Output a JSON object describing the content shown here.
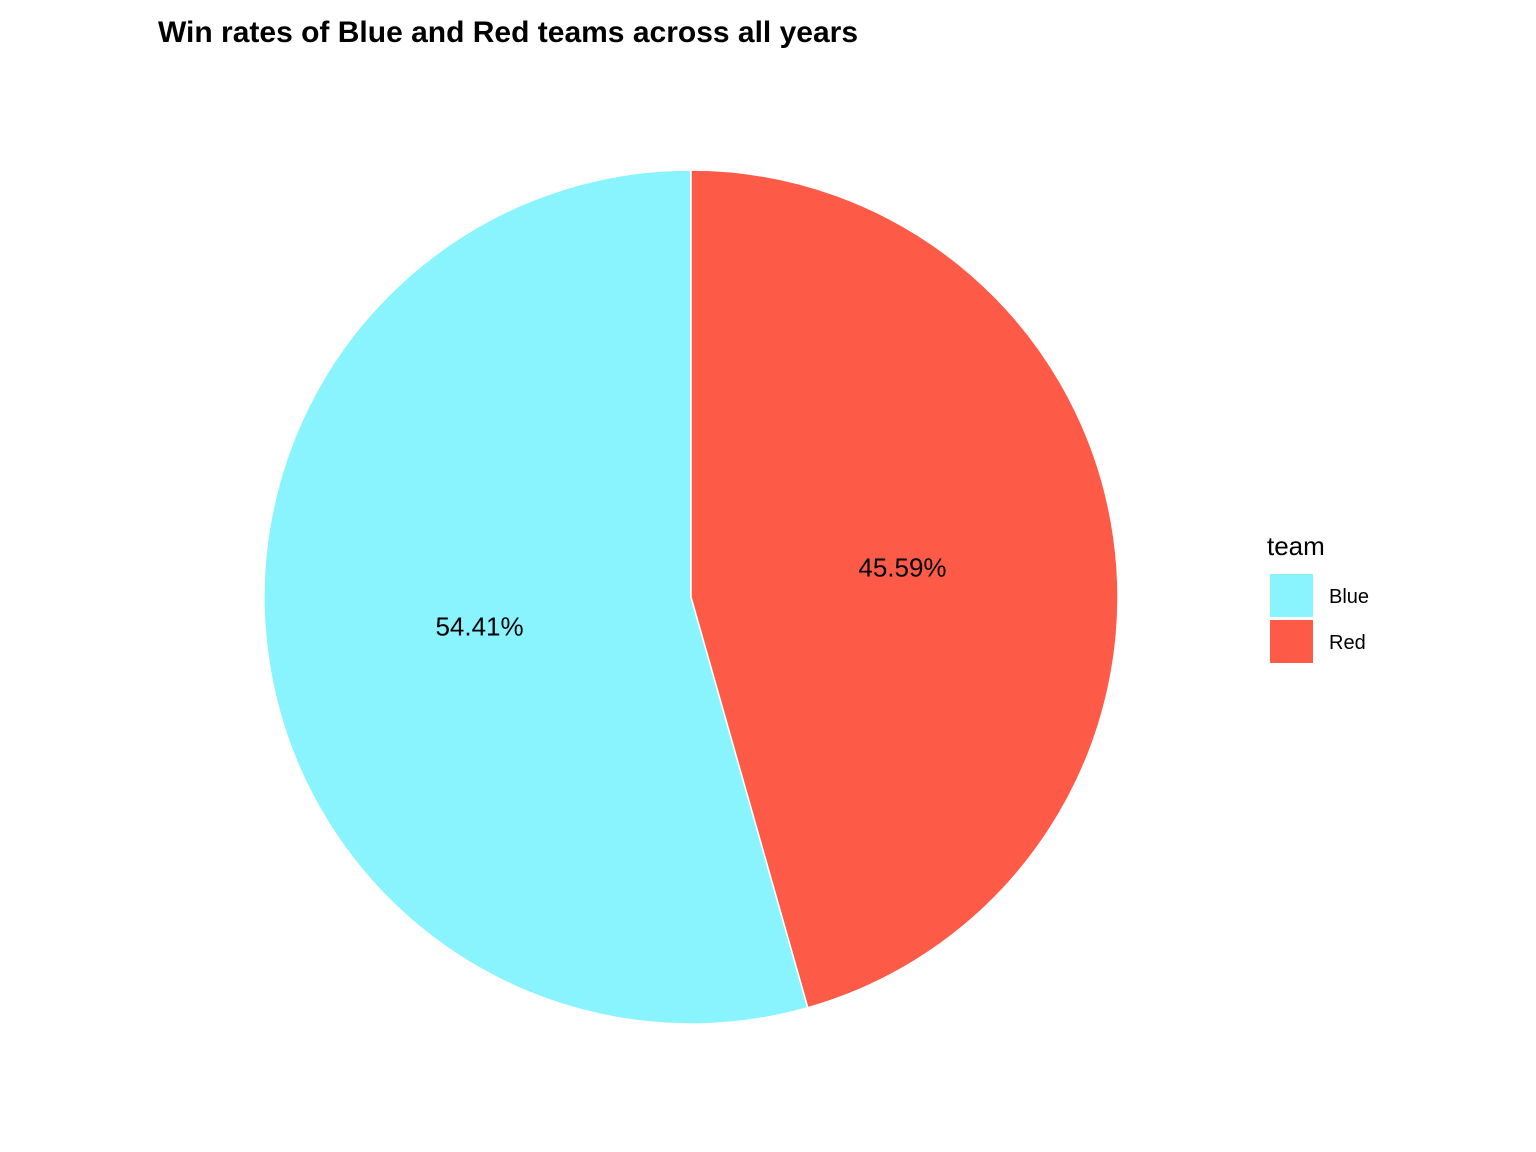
{
  "chart_data": {
    "type": "pie",
    "title": "Win rates of Blue and Red teams across all years",
    "categories": [
      "Blue",
      "Red"
    ],
    "values": [
      54.41,
      45.59
    ],
    "labels": [
      "54.41%",
      "45.59%"
    ],
    "colors": [
      "#8af4fe",
      "#fd5b47"
    ],
    "legend": {
      "title": "team",
      "placement": "right",
      "entries": [
        "Blue",
        "Red"
      ]
    }
  }
}
